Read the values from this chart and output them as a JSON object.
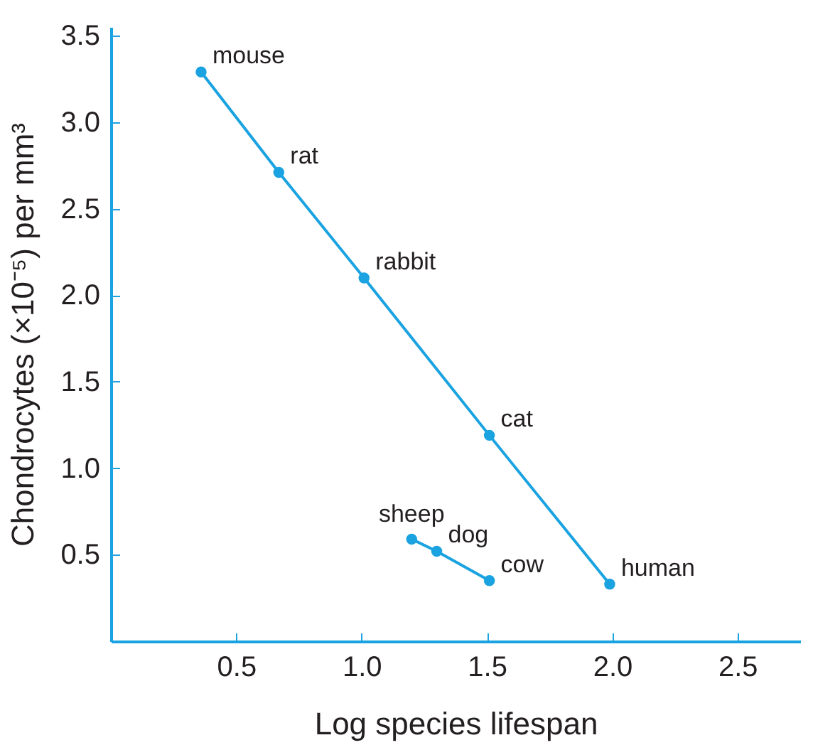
{
  "chart_data": {
    "type": "line",
    "xlabel": "Log species lifespan",
    "ylabel": "Chondrocytes (×10⁻⁵) per mm³",
    "series": [
      {
        "color": "#1aa3e0",
        "x": [
          0.36,
          0.67,
          1.01,
          1.51,
          1.99
        ],
        "values": [
          3.29,
          2.71,
          2.1,
          1.19,
          0.33
        ]
      },
      {
        "color": "#1aa3e0",
        "x": [
          1.2,
          1.3,
          1.51
        ],
        "values": [
          0.59,
          0.52,
          0.35
        ]
      }
    ],
    "annotations": [
      {
        "text": "mouse",
        "x": 0.36,
        "y": 3.29
      },
      {
        "text": "rat",
        "x": 0.67,
        "y": 2.71
      },
      {
        "text": "rabbit",
        "x": 1.01,
        "y": 2.1
      },
      {
        "text": "cat",
        "x": 1.51,
        "y": 1.19
      },
      {
        "text": "human",
        "x": 1.99,
        "y": 0.33
      },
      {
        "text": "sheep",
        "x": 1.2,
        "y": 0.59
      },
      {
        "text": "dog",
        "x": 1.3,
        "y": 0.52
      },
      {
        "text": "cow",
        "x": 1.51,
        "y": 0.35
      }
    ],
    "xlim": [
      0,
      2.75
    ],
    "ylim": [
      0,
      3.55
    ],
    "xticks": [
      0.5,
      {
        "value": 1,
        "label": "1.0"
      },
      1.5,
      {
        "value": 2,
        "label": "2.0"
      },
      2.5
    ],
    "yticks": [
      0.5,
      {
        "value": 1,
        "label": "1.0"
      },
      1.5,
      {
        "value": 2,
        "label": "2.0"
      },
      2.5,
      {
        "value": 3,
        "label": "3.0"
      },
      3.5
    ],
    "marker": "circle",
    "line_style": "solid",
    "grid": false
  }
}
